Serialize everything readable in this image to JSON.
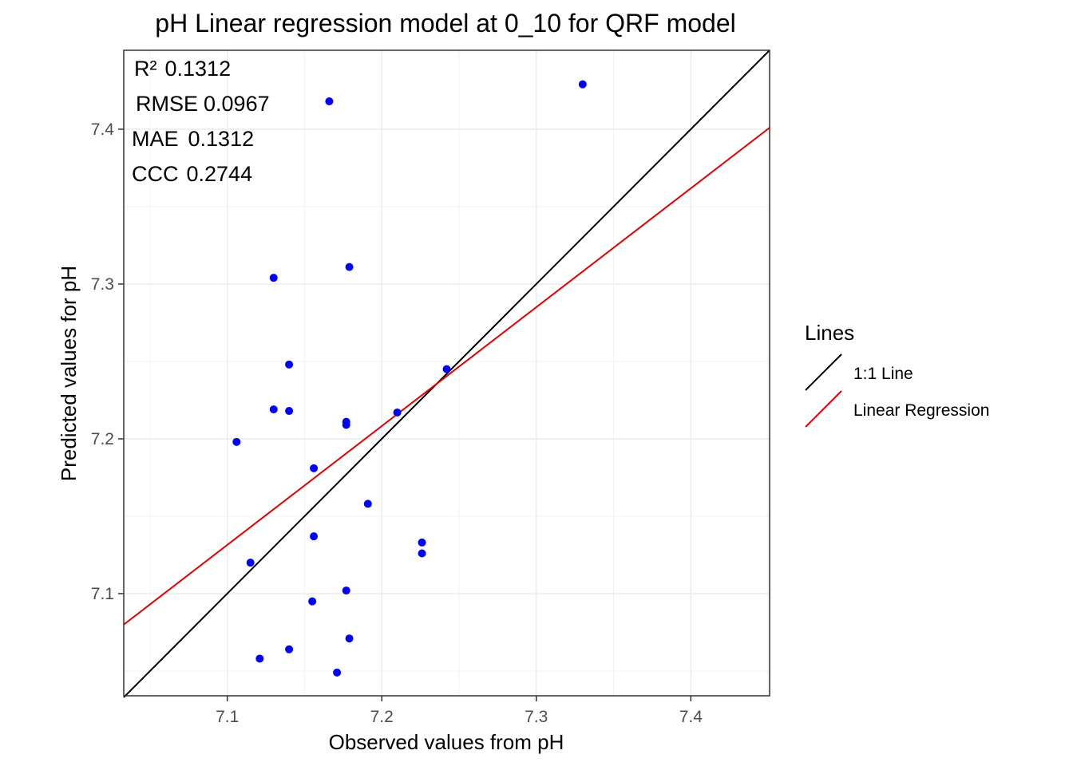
{
  "chart_data": {
    "type": "scatter",
    "title": "pH  Linear regression model at  0_10  for  QRF  model",
    "xlabel": "Observed values from pH",
    "ylabel": "Predicted values for pH",
    "xlim": [
      7.033,
      7.451
    ],
    "ylim": [
      7.034,
      7.451
    ],
    "xticks": [
      7.1,
      7.2,
      7.3,
      7.4
    ],
    "yticks": [
      7.1,
      7.2,
      7.3,
      7.4
    ],
    "xtick_labels": [
      "7.1",
      "7.2",
      "7.3",
      "7.4"
    ],
    "ytick_labels": [
      "7.1",
      "7.2",
      "7.3",
      "7.4"
    ],
    "grid": true,
    "point_color": "#0000ff",
    "points": [
      {
        "x": 7.33,
        "y": 7.429
      },
      {
        "x": 7.166,
        "y": 7.418
      },
      {
        "x": 7.179,
        "y": 7.311
      },
      {
        "x": 7.13,
        "y": 7.304
      },
      {
        "x": 7.14,
        "y": 7.248
      },
      {
        "x": 7.242,
        "y": 7.245
      },
      {
        "x": 7.13,
        "y": 7.219
      },
      {
        "x": 7.14,
        "y": 7.218
      },
      {
        "x": 7.21,
        "y": 7.217
      },
      {
        "x": 7.177,
        "y": 7.211
      },
      {
        "x": 7.177,
        "y": 7.209
      },
      {
        "x": 7.106,
        "y": 7.198
      },
      {
        "x": 7.156,
        "y": 7.181
      },
      {
        "x": 7.191,
        "y": 7.158
      },
      {
        "x": 7.156,
        "y": 7.137
      },
      {
        "x": 7.226,
        "y": 7.133
      },
      {
        "x": 7.226,
        "y": 7.126
      },
      {
        "x": 7.115,
        "y": 7.12
      },
      {
        "x": 7.177,
        "y": 7.102
      },
      {
        "x": 7.155,
        "y": 7.095
      },
      {
        "x": 7.179,
        "y": 7.071
      },
      {
        "x": 7.14,
        "y": 7.064
      },
      {
        "x": 7.121,
        "y": 7.058
      },
      {
        "x": 7.171,
        "y": 7.049
      }
    ],
    "lines": [
      {
        "name": "1:1 Line",
        "color": "#000000",
        "x": [
          7.033,
          7.451
        ],
        "y": [
          7.033,
          7.451
        ]
      },
      {
        "name": "Linear Regression",
        "color": "#e00000",
        "x": [
          7.033,
          7.451
        ],
        "y": [
          7.08,
          7.401
        ]
      }
    ],
    "legend": {
      "title": "Lines",
      "position": "right",
      "entries": [
        "1:1 Line",
        "Linear Regression"
      ]
    },
    "stats": [
      {
        "label": "R²",
        "value": "0.1312"
      },
      {
        "label": "RMSE",
        "value": "0.0967"
      },
      {
        "label": "MAE",
        "value": "0.1312"
      },
      {
        "label": "CCC",
        "value": "0.2744"
      }
    ]
  }
}
